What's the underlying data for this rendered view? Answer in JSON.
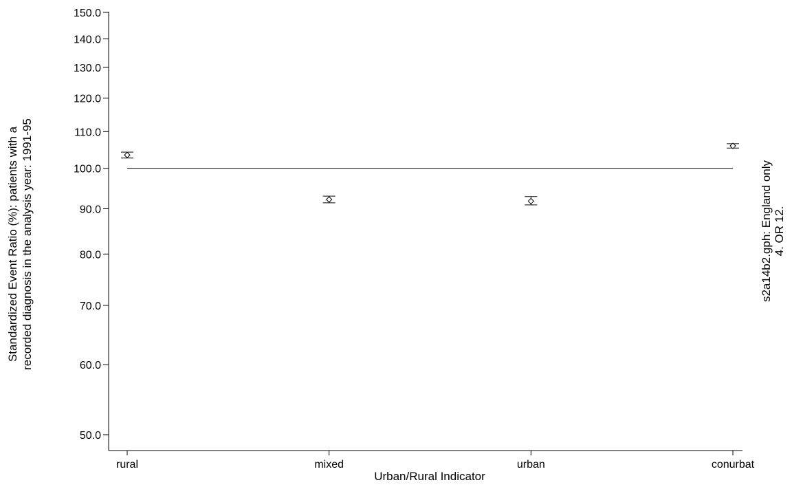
{
  "chart_data": {
    "type": "scatter",
    "title": "",
    "ylabel": [
      "Standardized Event Ratio (%): patients with a",
      "recorded diagnosis in the analysis year: 1991-95"
    ],
    "xlabel": "Urban/Rural Indicator",
    "side_note": [
      "s2a14b2.gph: England only",
      "4. OR 12."
    ],
    "y_scale": "log",
    "ylim": [
      48,
      156
    ],
    "y_ticks": [
      50,
      60,
      70,
      80,
      90,
      100,
      110,
      120,
      130,
      140,
      150
    ],
    "y_tick_labels": [
      "50.0",
      "60.0",
      "70.0",
      "80.0",
      "90.0",
      "100.0",
      "110.0",
      "120.0",
      "130.0",
      "140.0",
      "150.0"
    ],
    "categories": [
      "rural",
      "mixed",
      "urban",
      "conurbat"
    ],
    "series": [
      {
        "values": [
          103.5,
          92.2,
          91.8,
          106.0
        ],
        "ci_low": [
          102.7,
          91.4,
          90.9,
          105.4
        ],
        "ci_high": [
          104.3,
          93.0,
          92.9,
          106.6
        ]
      }
    ],
    "reference_line": 100,
    "grid": false,
    "legend": "none"
  }
}
